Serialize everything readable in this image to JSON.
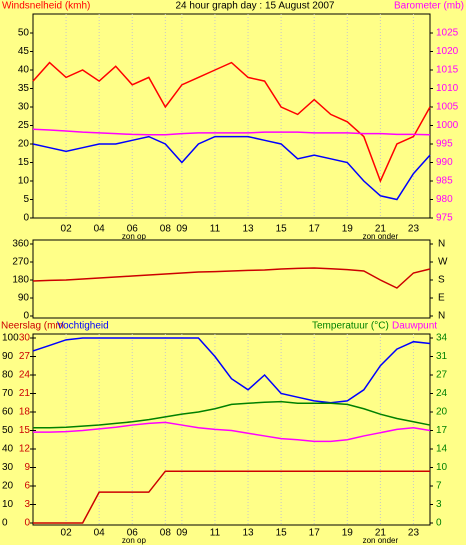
{
  "chart_data": [
    {
      "type": "line",
      "title": "24 hour graph day : 15 August 2007",
      "ylabel": "Windsnelheid (kmh)",
      "y2label": "Barometer (mb)",
      "annotations": [
        "zon op",
        "zon onder"
      ],
      "x": [
        0,
        1,
        2,
        3,
        4,
        5,
        6,
        7,
        8,
        9,
        10,
        11,
        12,
        13,
        14,
        15,
        16,
        17,
        18,
        19,
        20,
        21,
        22,
        23,
        24
      ],
      "xlim": [
        0,
        24
      ],
      "xticks": [
        {
          "value": 2,
          "label": "02"
        },
        {
          "value": 4,
          "label": "04"
        },
        {
          "value": 6,
          "label": "06"
        },
        {
          "value": 8,
          "label": "08"
        },
        {
          "value": 9,
          "label": "09"
        },
        {
          "value": 11,
          "label": "11"
        },
        {
          "value": 13,
          "label": "13"
        },
        {
          "value": 15,
          "label": "15"
        },
        {
          "value": 17,
          "label": "17"
        },
        {
          "value": 19,
          "label": "19"
        },
        {
          "value": 21,
          "label": "21"
        },
        {
          "value": 23,
          "label": "23"
        }
      ],
      "ylim": [
        0,
        50
      ],
      "yticks": [
        0,
        5,
        10,
        15,
        20,
        25,
        30,
        35,
        40,
        45,
        50
      ],
      "y2lim": [
        975,
        1025
      ],
      "y2ticks": [
        975,
        980,
        985,
        990,
        995,
        1000,
        1005,
        1010,
        1015,
        1020,
        1025
      ],
      "series": [
        {
          "color": "#ff0000",
          "axis": "y",
          "values": [
            37,
            42,
            38,
            40,
            37,
            41,
            36,
            38,
            30,
            36,
            38,
            40,
            42,
            38,
            37,
            30,
            28,
            32,
            28,
            26,
            22,
            10,
            20,
            22,
            30
          ]
        },
        {
          "color": "#0000ff",
          "axis": "y",
          "values": [
            20,
            19,
            18,
            19,
            20,
            20,
            21,
            22,
            20,
            15,
            20,
            22,
            22,
            22,
            21,
            20,
            16,
            17,
            16,
            15,
            10,
            6,
            5,
            12,
            17
          ]
        },
        {
          "color": "#ff00ff",
          "axis": "y2",
          "values": [
            999,
            998.8,
            998.5,
            998.2,
            998,
            997.8,
            997.6,
            997.5,
            997.5,
            997.8,
            998,
            998,
            998,
            998,
            998.2,
            998.2,
            998.2,
            998,
            998,
            998,
            997.8,
            997.8,
            997.6,
            997.6,
            997.5
          ]
        }
      ]
    },
    {
      "type": "line",
      "x": [
        0,
        1,
        2,
        3,
        4,
        5,
        6,
        7,
        8,
        9,
        10,
        11,
        12,
        13,
        14,
        15,
        16,
        17,
        18,
        19,
        20,
        21,
        22,
        23,
        24
      ],
      "xlim": [
        0,
        24
      ],
      "ylim": [
        0,
        360
      ],
      "yticks": [
        0,
        90,
        180,
        270,
        360
      ],
      "y2lim": [
        0,
        360
      ],
      "y2ticks": [
        {
          "value": 0,
          "label": "N"
        },
        {
          "value": 90,
          "label": "E"
        },
        {
          "value": 180,
          "label": "S"
        },
        {
          "value": 270,
          "label": "W"
        },
        {
          "value": 360,
          "label": "N"
        }
      ],
      "series": [
        {
          "color": "#cc0000",
          "axis": "y",
          "values": [
            175,
            178,
            180,
            185,
            190,
            195,
            200,
            205,
            210,
            215,
            220,
            222,
            225,
            228,
            230,
            235,
            238,
            240,
            236,
            232,
            225,
            180,
            140,
            215,
            235
          ]
        }
      ]
    },
    {
      "type": "line",
      "annotations": [
        "zon op",
        "zon onder"
      ],
      "x": [
        0,
        1,
        2,
        3,
        4,
        5,
        6,
        7,
        8,
        9,
        10,
        11,
        12,
        13,
        14,
        15,
        16,
        17,
        18,
        19,
        20,
        21,
        22,
        23,
        24
      ],
      "xlim": [
        0,
        24
      ],
      "xticks": [
        {
          "value": 2,
          "label": "02"
        },
        {
          "value": 4,
          "label": "04"
        },
        {
          "value": 6,
          "label": "06"
        },
        {
          "value": 8,
          "label": "08"
        },
        {
          "value": 9,
          "label": "09"
        },
        {
          "value": 11,
          "label": "11"
        },
        {
          "value": 13,
          "label": "13"
        },
        {
          "value": 15,
          "label": "15"
        },
        {
          "value": 17,
          "label": "17"
        },
        {
          "value": 19,
          "label": "19"
        },
        {
          "value": 21,
          "label": "21"
        },
        {
          "value": 23,
          "label": "23"
        }
      ],
      "ylim": [
        0,
        100
      ],
      "yticks": [
        0,
        10,
        20,
        30,
        40,
        50,
        60,
        70,
        80,
        90,
        100
      ],
      "y3lim": [
        0,
        30
      ],
      "y3ticks": [
        0,
        3,
        6,
        9,
        12,
        15,
        18,
        21,
        24,
        27,
        30
      ],
      "y2lim": [
        0,
        34
      ],
      "y2ticks": [
        0,
        {
          "value": 3.4,
          "label": "3"
        },
        {
          "value": 6.8,
          "label": "7"
        },
        {
          "value": 10.2,
          "label": "10"
        },
        {
          "value": 13.6,
          "label": "14"
        },
        17,
        {
          "value": 20.4,
          "label": "20"
        },
        {
          "value": 23.8,
          "label": "24"
        },
        {
          "value": 27.2,
          "label": "27"
        },
        {
          "value": 30.6,
          "label": "31"
        },
        34
      ],
      "series": [
        {
          "name": "Neerslag (mm",
          "color": "#cc0000",
          "axis": "y3",
          "values": [
            0,
            0,
            0,
            0,
            5,
            5,
            5,
            5,
            8.4,
            8.4,
            8.4,
            8.4,
            8.4,
            8.4,
            8.4,
            8.4,
            8.4,
            8.4,
            8.4,
            8.4,
            8.4,
            8.4,
            8.4,
            8.4,
            8.4
          ]
        },
        {
          "name": "Vochtigheid",
          "color": "#0000ff",
          "axis": "y",
          "values": [
            93,
            96,
            99,
            100,
            100,
            100,
            100,
            100,
            100,
            100,
            100,
            90,
            78,
            72,
            80,
            70,
            68,
            66,
            65,
            66,
            72,
            85,
            94,
            98,
            97
          ]
        },
        {
          "name": "Temperatuur (°C)",
          "color": "#008000",
          "axis": "y2",
          "values": [
            17.5,
            17.5,
            17.6,
            17.8,
            18,
            18.3,
            18.6,
            19,
            19.5,
            20,
            20.4,
            21,
            21.8,
            22,
            22.2,
            22.3,
            22,
            22,
            22,
            21.8,
            21,
            20,
            19.2,
            18.6,
            18
          ]
        },
        {
          "name": "Dauwpunt",
          "color": "#ff00ff",
          "axis": "y2",
          "values": [
            16.7,
            16.7,
            16.8,
            17,
            17.3,
            17.6,
            18,
            18.3,
            18.5,
            18,
            17.5,
            17.2,
            17,
            16.5,
            16,
            15.5,
            15.3,
            15,
            15,
            15.3,
            16,
            16.6,
            17.2,
            17.5,
            17
          ]
        }
      ]
    }
  ]
}
